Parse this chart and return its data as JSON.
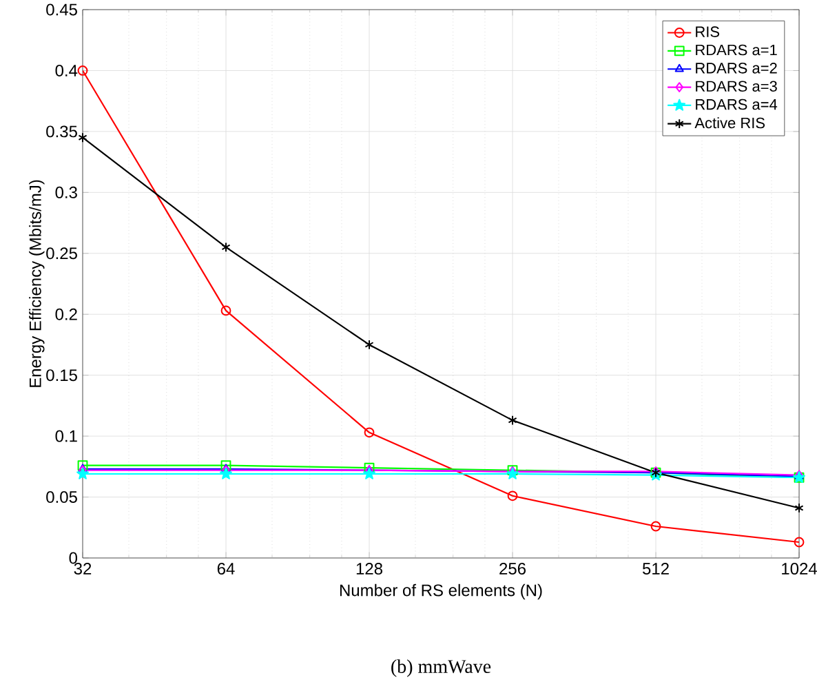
{
  "chart_data": {
    "type": "line",
    "xlabel": "Number of RS elements (N)",
    "ylabel": "Energy Efficiency (Mbits/mJ)",
    "x": [
      32,
      64,
      128,
      256,
      512,
      1024
    ],
    "log": "x",
    "xlim": [
      32,
      1024
    ],
    "xticks": [
      32,
      64,
      128,
      256,
      512,
      1024
    ],
    "ylim": [
      0,
      0.45
    ],
    "yticks": [
      0,
      0.05,
      0.1,
      0.15,
      0.2,
      0.25,
      0.3,
      0.35,
      0.4,
      0.45
    ],
    "grid": true,
    "legend": "top right",
    "line_style": "solid",
    "series": [
      {
        "name": "RIS",
        "color": "#ff0000",
        "marker": "circle",
        "values": [
          0.4,
          0.203,
          0.103,
          0.051,
          0.026,
          0.013
        ]
      },
      {
        "name": "RDARS a=1",
        "color": "#00ff00",
        "marker": "square",
        "values": [
          0.076,
          0.076,
          0.074,
          0.072,
          0.07,
          0.066
        ]
      },
      {
        "name": "RDARS a=2",
        "color": "#0000ff",
        "marker": "triangle",
        "values": [
          0.073,
          0.073,
          0.072,
          0.071,
          0.07,
          0.067
        ]
      },
      {
        "name": "RDARS a=3",
        "color": "#ff00ff",
        "marker": "diamond",
        "values": [
          0.072,
          0.072,
          0.072,
          0.071,
          0.071,
          0.068
        ]
      },
      {
        "name": "RDARS a=4",
        "color": "#00ffff",
        "marker": "star",
        "values": [
          0.069,
          0.069,
          0.069,
          0.069,
          0.068,
          0.066
        ]
      },
      {
        "name": "Active RIS",
        "color": "#000000",
        "marker": "cross",
        "values": [
          0.345,
          0.255,
          0.175,
          0.113,
          0.07,
          0.041
        ]
      }
    ],
    "annotations": [
      "(b) mmWave"
    ]
  }
}
